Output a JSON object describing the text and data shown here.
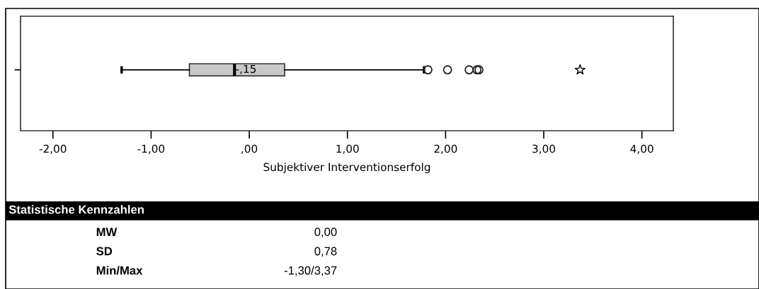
{
  "chart_data": [
    {
      "type": "box",
      "orientation": "horizontal",
      "xlabel": "Subjektiver Interventionserfolg",
      "categories": [
        null
      ],
      "xlim": [
        -2.33,
        4.32
      ],
      "xticks": [
        {
          "value": -2,
          "label": "-2,00"
        },
        {
          "value": -1,
          "label": "-1,00"
        },
        {
          "value": 0,
          "label": ",00"
        },
        {
          "value": 1,
          "label": "1,00"
        },
        {
          "value": 2,
          "label": "2,00"
        },
        {
          "value": 3,
          "label": "3,00"
        },
        {
          "value": 4,
          "label": "4,00"
        }
      ],
      "series": [
        {
          "type": "box",
          "color": "#c8c8c8",
          "boxes": [
            {
              "low": -1.3,
              "q1": -0.61,
              "median": -0.15,
              "q3": 0.36,
              "high": 1.78,
              "outliers": [
                1.82,
                2.02,
                2.24,
                2.32,
                2.34
              ]
            }
          ]
        },
        {
          "type": "scatter",
          "marker": "star",
          "color": "#000000",
          "values": [
            3.37
          ]
        }
      ],
      "annotations": [
        {
          "text": "-,15",
          "x": -0.15
        }
      ],
      "grid": false,
      "legend": false
    },
    {
      "type": "other",
      "title": "Statistische Kennzahlen",
      "annotations": [
        "MW",
        "0,00",
        "SD",
        "0,78",
        "Min/Max",
        "-1,30/3,37"
      ]
    }
  ]
}
